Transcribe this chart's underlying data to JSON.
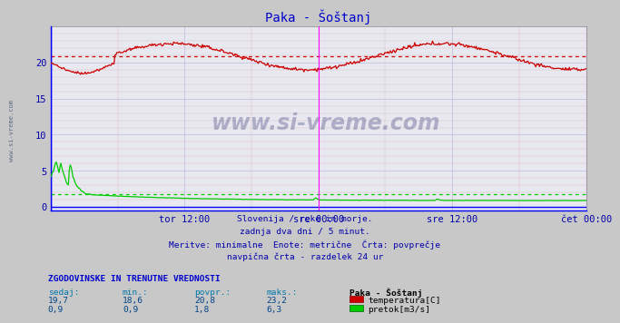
{
  "title": "Paka - Šoštanj",
  "title_color": "#0000cc",
  "background_color": "#c8c8c8",
  "plot_bg_color": "#e8e8f0",
  "x_tick_labels": [
    "tor 12:00",
    "sre 00:00",
    "sre 12:00",
    "čet 00:00"
  ],
  "x_tick_positions": [
    0.25,
    0.5,
    0.75,
    1.0
  ],
  "y_ticks": [
    0,
    5,
    10,
    15,
    20
  ],
  "y_lim": [
    -0.5,
    25
  ],
  "y_max_arrow": 24,
  "temp_avg": 20.8,
  "flow_avg": 1.8,
  "temp_color": "#cc0000",
  "flow_color": "#00cc00",
  "magenta_line_color": "#ff00ff",
  "blue_line_color": "#0000ff",
  "axis_color": "#0000ff",
  "watermark": "www.si-vreme.com",
  "subtitle_lines": [
    "Slovenija / reke in morje.",
    "zadnja dva dni / 5 minut.",
    "Meritve: minimalne  Enote: metrične  Črta: povprečje",
    "navpična črta - razdelek 24 ur"
  ],
  "table_header": "ZGODOVINSKE IN TRENUTNE VREDNOSTI",
  "table_cols": [
    "sedaj:",
    "min.:",
    "povpr.:",
    "maks.:"
  ],
  "table_row1_vals": [
    "19,7",
    "18,6",
    "20,8",
    "23,2"
  ],
  "table_row2_vals": [
    "0,9",
    "0,9",
    "1,8",
    "6,3"
  ],
  "legend_station": "Paka - Šoštanj",
  "legend_temp": "temperatura[C]",
  "legend_flow": "pretok[m3/s]",
  "tick_color": "#0000aa",
  "text_color": "#0000aa",
  "table_header_color": "#0000cc",
  "grid_major_color": "#bbbbdd",
  "grid_minor_color": "#ddbbbb"
}
